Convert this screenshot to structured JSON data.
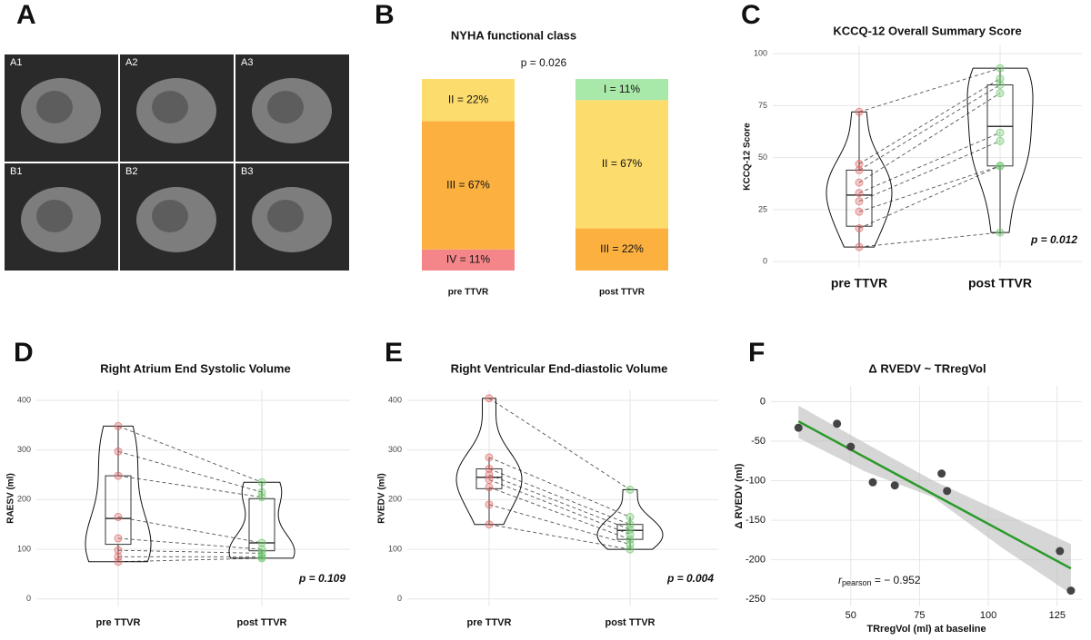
{
  "chart_data": [
    {
      "type": "image",
      "panel": "A",
      "labels": [
        "A1",
        "A2",
        "A3",
        "B1",
        "B2",
        "B3"
      ]
    },
    {
      "type": "bar",
      "panel": "B",
      "stacked": true,
      "title": "NYHA functional class",
      "annotation": "p = 0.026",
      "categories": [
        "pre TTVR",
        "post TTVR"
      ],
      "series": [
        {
          "color": "#f4868a",
          "values": [
            11,
            null
          ],
          "value_labels": [
            "IV = 11%",
            null
          ]
        },
        {
          "color": "#fbb040",
          "values": [
            67,
            22
          ],
          "value_labels": [
            "III = 67%",
            "III = 22%"
          ]
        },
        {
          "color": "#fcdc6c",
          "values": [
            22,
            67
          ],
          "value_labels": [
            "II = 22%",
            "II = 67%"
          ]
        },
        {
          "color": "#a8e8a8",
          "values": [
            null,
            11
          ],
          "value_labels": [
            null,
            "I = 11%"
          ]
        }
      ],
      "ylim": [
        0,
        100
      ]
    },
    {
      "type": "violin",
      "panel": "C",
      "title": "KCCQ-12 Overall Summary Score",
      "ylabel": "KCCQ-12 Score",
      "annotation": "p = 0.012",
      "categories": [
        "pre TTVR",
        "post TTVR"
      ],
      "series": [
        {
          "color": "#e06a6a",
          "values": [
            72,
            47,
            44,
            38,
            33,
            29,
            24,
            16,
            7
          ]
        },
        {
          "color": "#6cc86c",
          "values": [
            93,
            88,
            85,
            81,
            62,
            58,
            46,
            46,
            14
          ]
        }
      ],
      "box": [
        {
          "min": 7,
          "q1": 17,
          "median": 32,
          "q3": 44,
          "max": 72
        },
        {
          "min": 13,
          "q1": 46,
          "median": 65,
          "q3": 85,
          "max": 93
        }
      ],
      "ylim": [
        -3,
        104
      ],
      "yticks": [
        0,
        25,
        50,
        75,
        100
      ],
      "grid": true
    },
    {
      "type": "violin",
      "panel": "D",
      "title": "Right Atrium End Systolic Volume",
      "ylabel": "RAESV (ml)",
      "annotation": "p = 0.109",
      "categories": [
        "pre TTVR",
        "post TTVR"
      ],
      "series": [
        {
          "color": "#e06a6a",
          "values": [
            348,
            297,
            248,
            165,
            122,
            98,
            85,
            75
          ]
        },
        {
          "color": "#6cc86c",
          "values": [
            235,
            215,
            205,
            113,
            100,
            92,
            85,
            82
          ]
        }
      ],
      "box": [
        {
          "min": 75,
          "q1": 110,
          "median": 162,
          "q3": 248,
          "max": 348
        },
        {
          "min": 82,
          "q1": 97,
          "median": 113,
          "q3": 202,
          "max": 235
        }
      ],
      "ylim": [
        -15,
        420
      ],
      "yticks": [
        0,
        100,
        200,
        300,
        400
      ],
      "grid": true
    },
    {
      "type": "violin",
      "panel": "E",
      "title": "Right Ventricular End-diastolic Volume",
      "ylabel": "RVEDV (ml)",
      "annotation": "p = 0.004",
      "categories": [
        "pre TTVR",
        "post TTVR"
      ],
      "series": [
        {
          "color": "#e06a6a",
          "values": [
            404,
            285,
            262,
            250,
            240,
            225,
            190,
            150
          ]
        },
        {
          "color": "#6cc86c",
          "values": [
            220,
            165,
            150,
            140,
            130,
            120,
            110,
            100
          ]
        }
      ],
      "box": [
        {
          "min": 150,
          "q1": 222,
          "median": 245,
          "q3": 262,
          "max": 285
        },
        {
          "min": 100,
          "q1": 120,
          "median": 138,
          "q3": 150,
          "max": 165
        }
      ],
      "ylim": [
        -15,
        420
      ],
      "yticks": [
        0,
        100,
        200,
        300,
        400
      ],
      "grid": true
    },
    {
      "type": "scatter",
      "panel": "F",
      "title": "Δ RVEDV ~ TRregVol",
      "xlabel": "TRregVol (ml) at baseline",
      "ylabel": "Δ RVEDV (ml)",
      "annotation": {
        "symbol": "r",
        "subscript": "pearson",
        "text": " = − 0.952"
      },
      "x": [
        31,
        45,
        50,
        58,
        66,
        83,
        85,
        126,
        130
      ],
      "values": [
        -33,
        -28,
        -57,
        -102,
        -106,
        -91,
        -113,
        -189,
        -239
      ],
      "color": "#444444",
      "fit": {
        "color": "#2a9a2a",
        "x": [
          31,
          130
        ],
        "y": [
          -25,
          -211
        ]
      },
      "ci": {
        "x": [
          31,
          55,
          80,
          105,
          130
        ],
        "upper": [
          -5,
          -52,
          -100,
          -140,
          -180
        ],
        "lower": [
          -46,
          -88,
          -121,
          -185,
          -243
        ]
      },
      "xlim": [
        21,
        134
      ],
      "ylim": [
        -259,
        20
      ],
      "xticks": [
        50,
        75,
        100,
        125
      ],
      "yticks": [
        0,
        -50,
        -100,
        -150,
        -200,
        -250
      ],
      "grid": true
    }
  ]
}
